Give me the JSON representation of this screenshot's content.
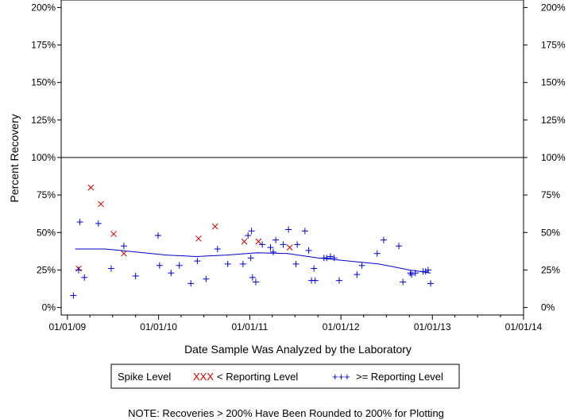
{
  "chart_data": {
    "type": "scatter",
    "xlabel": "Date Sample Was Analyzed by the Laboratory",
    "ylabel": "Percent Recovery",
    "x_ticks": [
      "01/01/09",
      "01/01/10",
      "01/01/11",
      "01/01/12",
      "01/01/13",
      "01/01/14"
    ],
    "y_ticks": [
      "0%",
      "25%",
      "50%",
      "75%",
      "100%",
      "125%",
      "150%",
      "175%",
      "200%"
    ],
    "xlim": [
      "2008-12-07",
      "2014-01-01"
    ],
    "ylim": [
      -5,
      205
    ],
    "reference_line": 100,
    "colors": {
      "below": "#cc0000",
      "above": "#0000cc",
      "trend": "#0000cc"
    },
    "legend": {
      "title": "Spike Level",
      "items": [
        {
          "symbol": "XXX",
          "label": "< Reporting Level",
          "marker": "x",
          "color": "#cc0000"
        },
        {
          "symbol": "+++",
          "label": ">= Reporting Level",
          "marker": "+",
          "color": "#0000cc"
        }
      ]
    },
    "note": "NOTE: Recoveries > 200% Have Been Rounded to 200% for Plotting",
    "series": [
      {
        "name": "< Reporting Level",
        "marker": "x",
        "points": [
          {
            "x": "2009-02-15",
            "y": 26
          },
          {
            "x": "2009-04-05",
            "y": 80
          },
          {
            "x": "2009-05-15",
            "y": 69
          },
          {
            "x": "2009-07-05",
            "y": 49
          },
          {
            "x": "2009-08-15",
            "y": 36
          },
          {
            "x": "2010-06-10",
            "y": 46
          },
          {
            "x": "2010-08-15",
            "y": 54
          },
          {
            "x": "2010-12-10",
            "y": 44
          },
          {
            "x": "2011-02-05",
            "y": 44
          },
          {
            "x": "2011-06-10",
            "y": 40
          }
        ]
      },
      {
        "name": ">= Reporting Level",
        "marker": "+",
        "points": [
          {
            "x": "2009-01-25",
            "y": 8
          },
          {
            "x": "2009-02-15",
            "y": 25
          },
          {
            "x": "2009-02-20",
            "y": 57
          },
          {
            "x": "2009-03-10",
            "y": 20
          },
          {
            "x": "2009-05-05",
            "y": 56
          },
          {
            "x": "2009-06-25",
            "y": 26
          },
          {
            "x": "2009-08-15",
            "y": 41
          },
          {
            "x": "2009-10-01",
            "y": 21
          },
          {
            "x": "2009-12-30",
            "y": 48
          },
          {
            "x": "2010-01-05",
            "y": 28
          },
          {
            "x": "2010-02-20",
            "y": 23
          },
          {
            "x": "2010-03-25",
            "y": 28
          },
          {
            "x": "2010-05-10",
            "y": 16
          },
          {
            "x": "2010-06-05",
            "y": 31
          },
          {
            "x": "2010-07-10",
            "y": 19
          },
          {
            "x": "2010-08-25",
            "y": 39
          },
          {
            "x": "2010-10-05",
            "y": 29
          },
          {
            "x": "2010-12-05",
            "y": 29
          },
          {
            "x": "2010-12-25",
            "y": 48
          },
          {
            "x": "2011-01-05",
            "y": 33
          },
          {
            "x": "2011-01-08",
            "y": 51
          },
          {
            "x": "2011-01-12",
            "y": 20
          },
          {
            "x": "2011-01-25",
            "y": 17
          },
          {
            "x": "2011-02-20",
            "y": 42
          },
          {
            "x": "2011-03-25",
            "y": 40
          },
          {
            "x": "2011-04-05",
            "y": 37
          },
          {
            "x": "2011-04-15",
            "y": 45
          },
          {
            "x": "2011-05-15",
            "y": 42
          },
          {
            "x": "2011-06-05",
            "y": 52
          },
          {
            "x": "2011-07-05",
            "y": 29
          },
          {
            "x": "2011-07-10",
            "y": 42
          },
          {
            "x": "2011-08-10",
            "y": 51
          },
          {
            "x": "2011-08-25",
            "y": 38
          },
          {
            "x": "2011-09-05",
            "y": 18
          },
          {
            "x": "2011-09-15",
            "y": 26
          },
          {
            "x": "2011-09-20",
            "y": 18
          },
          {
            "x": "2011-10-25",
            "y": 33
          },
          {
            "x": "2011-11-05",
            "y": 33
          },
          {
            "x": "2011-11-20",
            "y": 34
          },
          {
            "x": "2011-12-05",
            "y": 33
          },
          {
            "x": "2011-12-25",
            "y": 18
          },
          {
            "x": "2012-03-05",
            "y": 22
          },
          {
            "x": "2012-03-25",
            "y": 28
          },
          {
            "x": "2012-05-25",
            "y": 36
          },
          {
            "x": "2012-06-20",
            "y": 45
          },
          {
            "x": "2012-08-20",
            "y": 41
          },
          {
            "x": "2012-09-05",
            "y": 17
          },
          {
            "x": "2012-10-05",
            "y": 23
          },
          {
            "x": "2012-10-10",
            "y": 22
          },
          {
            "x": "2012-10-25",
            "y": 23
          },
          {
            "x": "2012-11-25",
            "y": 24
          },
          {
            "x": "2012-12-05",
            "y": 24
          },
          {
            "x": "2012-12-15",
            "y": 25
          },
          {
            "x": "2012-12-25",
            "y": 16
          }
        ]
      }
    ],
    "trend": [
      {
        "x": "2009-02-01",
        "y": 39
      },
      {
        "x": "2009-06-01",
        "y": 39
      },
      {
        "x": "2009-10-01",
        "y": 37
      },
      {
        "x": "2010-02-01",
        "y": 35
      },
      {
        "x": "2010-06-01",
        "y": 34
      },
      {
        "x": "2010-10-01",
        "y": 35
      },
      {
        "x": "2011-02-01",
        "y": 36.5
      },
      {
        "x": "2011-06-01",
        "y": 36
      },
      {
        "x": "2011-10-01",
        "y": 33
      },
      {
        "x": "2012-02-01",
        "y": 31
      },
      {
        "x": "2012-06-01",
        "y": 29
      },
      {
        "x": "2012-10-01",
        "y": 25
      },
      {
        "x": "2012-12-25",
        "y": 23
      }
    ]
  }
}
